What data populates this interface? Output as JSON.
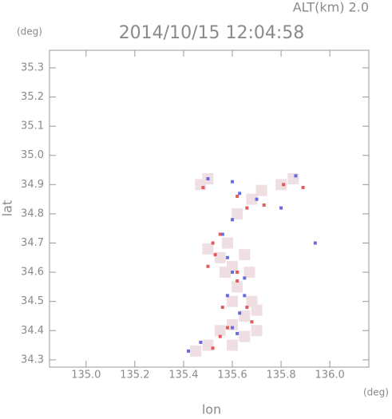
{
  "chart_data": {
    "type": "scatter",
    "title": "2014/10/15 12:04:58",
    "altitude_label": "ALT(km)  2.0",
    "y_unit": "(deg)",
    "x_unit": "(deg)",
    "xlabel": "lon",
    "ylabel": "lat",
    "xlim": [
      134.85,
      136.16
    ],
    "ylim": [
      34.275,
      35.36
    ],
    "xticks": [
      {
        "value": 135.0,
        "label": "135.0"
      },
      135.2,
      135.4,
      135.6,
      135.8,
      {
        "value": 136.0,
        "label": "136.0"
      }
    ],
    "yticks": [
      34.3,
      34.4,
      34.5,
      34.6,
      34.7,
      34.8,
      34.9,
      {
        "value": 35.0,
        "label": "35.0"
      },
      35.1,
      35.2,
      35.3
    ],
    "series": [
      {
        "color": "#efdfe2",
        "x": [
          135.55,
          135.6,
          135.65,
          135.5,
          135.58,
          135.62,
          135.6,
          135.65,
          135.6,
          135.55,
          135.65,
          135.6,
          135.5,
          135.45,
          135.7,
          135.68,
          135.62,
          135.68,
          135.72,
          135.8,
          135.85,
          135.5,
          135.47,
          135.57,
          135.67,
          135.7
        ],
        "y": [
          34.65,
          34.62,
          34.66,
          34.68,
          34.7,
          34.55,
          34.5,
          34.45,
          34.42,
          34.4,
          34.38,
          34.35,
          34.35,
          34.33,
          34.4,
          34.5,
          34.8,
          34.85,
          34.88,
          34.9,
          34.92,
          34.92,
          34.9,
          34.6,
          34.6,
          34.47
        ]
      },
      {
        "color": "#e25a5a",
        "x": [
          135.48,
          135.62,
          135.66,
          135.73,
          135.81,
          135.89,
          135.55,
          135.53,
          135.5,
          135.62,
          135.56,
          135.66,
          135.58,
          135.55,
          135.52,
          135.68,
          135.62,
          135.52
        ],
        "y": [
          34.89,
          34.86,
          34.82,
          34.83,
          34.9,
          34.89,
          34.73,
          34.66,
          34.62,
          34.57,
          34.48,
          34.48,
          34.41,
          34.38,
          34.34,
          34.43,
          34.6,
          34.7
        ]
      },
      {
        "color": "#6a6ae0",
        "x": [
          135.5,
          135.6,
          135.63,
          135.7,
          135.8,
          135.86,
          135.6,
          135.56,
          135.58,
          135.6,
          135.65,
          135.58,
          135.63,
          135.6,
          135.62,
          135.42,
          135.47,
          135.94,
          135.65
        ],
        "y": [
          34.92,
          34.91,
          34.87,
          34.85,
          34.82,
          34.93,
          34.78,
          34.73,
          34.65,
          34.6,
          34.58,
          34.52,
          34.46,
          34.41,
          34.39,
          34.33,
          34.36,
          34.7,
          34.52
        ]
      }
    ]
  }
}
